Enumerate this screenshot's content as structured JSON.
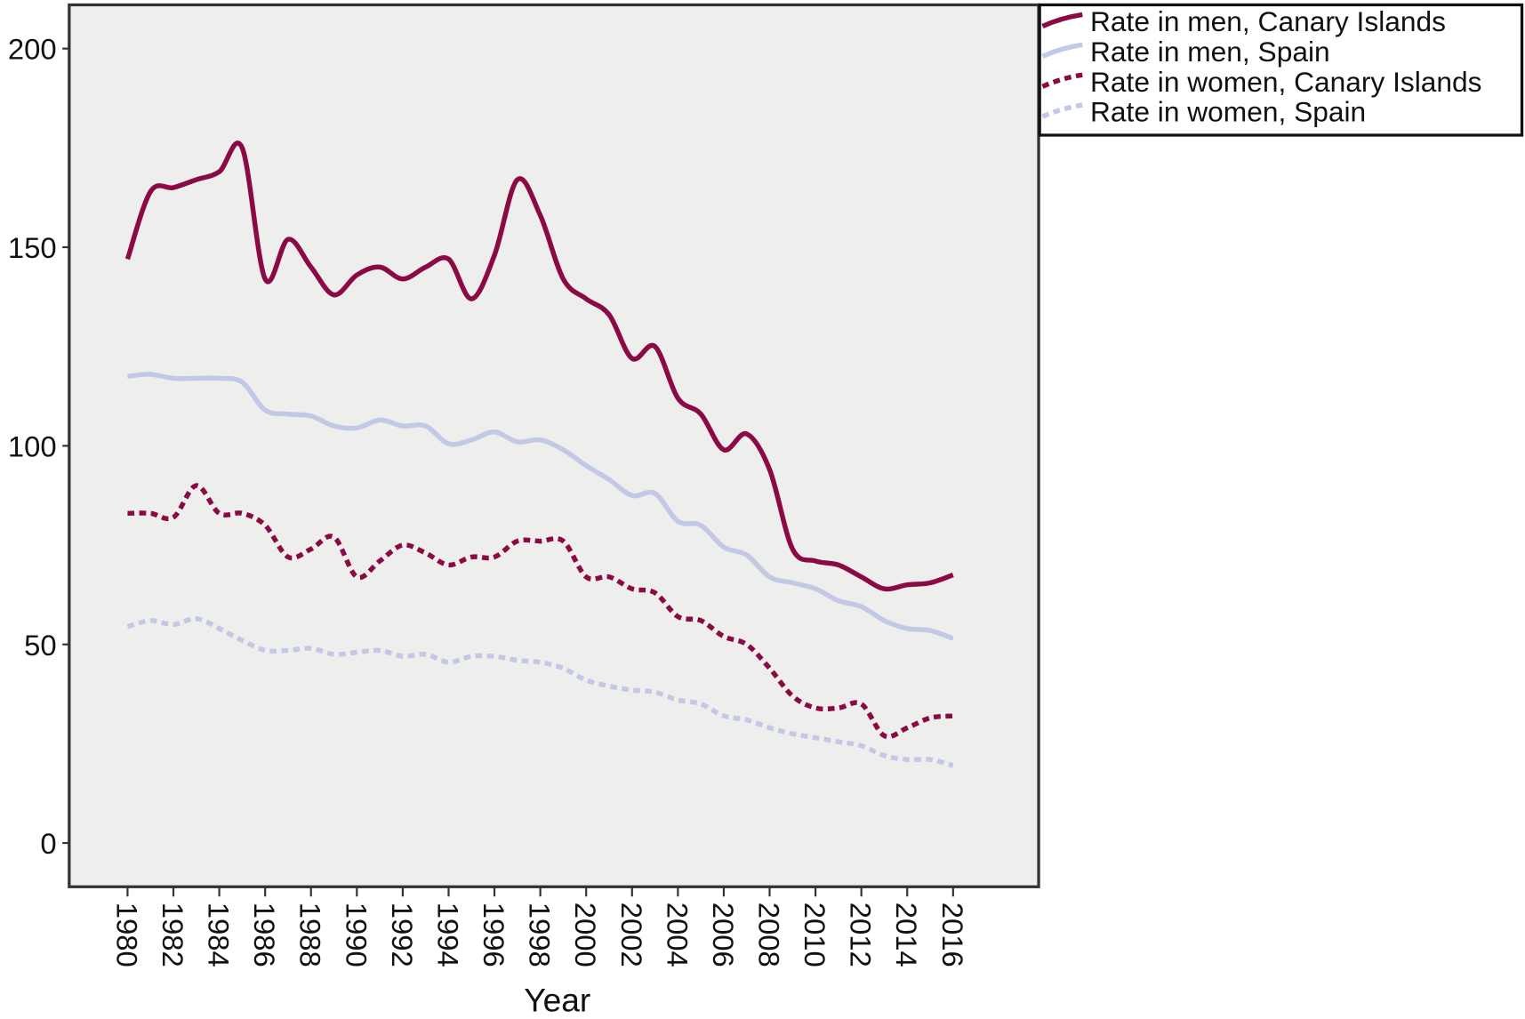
{
  "chart_data": {
    "type": "line",
    "title": "",
    "xlabel": "Year",
    "ylabel": "",
    "xlim": [
      1980,
      2016
    ],
    "ylim": [
      -10,
      212
    ],
    "grid": false,
    "legend_position": "top-right, outside plot",
    "plot_background": "#eeeeec",
    "y_ticks": [
      "0",
      "50",
      "100",
      "150",
      "200"
    ],
    "x_ticks": [
      "1980",
      "1982",
      "1984",
      "1986",
      "1988",
      "1990",
      "1992",
      "1994",
      "1996",
      "1998",
      "2000",
      "2002",
      "2004",
      "2006",
      "2008",
      "2010",
      "2012",
      "2014",
      "2016"
    ],
    "x": [
      1980,
      1981,
      1982,
      1983,
      1984,
      1985,
      1986,
      1987,
      1988,
      1989,
      1990,
      1991,
      1992,
      1993,
      1994,
      1995,
      1996,
      1997,
      1998,
      1999,
      2000,
      2001,
      2002,
      2003,
      2004,
      2005,
      2006,
      2007,
      2008,
      2009,
      2010,
      2011,
      2012,
      2013,
      2014,
      2015,
      2016
    ],
    "series": [
      {
        "name": "Rate in men, Canary Islands",
        "color": "#8b0a46",
        "style": "solid",
        "values": [
          147,
          164,
          165,
          167,
          169,
          175,
          142,
          152,
          145,
          138,
          143,
          145,
          142,
          145,
          147,
          137,
          148,
          167,
          158,
          142,
          137,
          133,
          122,
          125,
          112,
          108,
          99,
          103,
          94,
          74,
          71,
          70,
          67,
          64,
          65,
          65.5,
          67.5
        ]
      },
      {
        "name": "Rate in men, Spain",
        "color": "#c3c8e6",
        "style": "solid",
        "values": [
          117.5,
          118,
          117,
          117,
          117,
          116,
          109,
          108,
          107.5,
          105,
          104.5,
          106.5,
          105,
          105,
          100.5,
          101.5,
          103.5,
          101,
          101.5,
          99,
          95,
          91.5,
          87.5,
          88,
          81,
          80,
          74.5,
          72.5,
          67,
          65.5,
          64,
          61,
          59.5,
          56,
          54,
          53.5,
          51.5
        ]
      },
      {
        "name": "Rate in women, Canary Islands",
        "color": "#8b0a46",
        "style": "dotted",
        "values": [
          83,
          83,
          82,
          90,
          83,
          83,
          80,
          72,
          74,
          77,
          67,
          71,
          75,
          73,
          70,
          72,
          72,
          76,
          76,
          76,
          67,
          67,
          64,
          63,
          57,
          56,
          52,
          50,
          44,
          37,
          34,
          34,
          35,
          27,
          29,
          31.5,
          32
        ]
      },
      {
        "name": "Rate in women, Spain",
        "color": "#c3c8e6",
        "style": "dotted",
        "values": [
          54.5,
          56,
          55,
          56.5,
          54,
          51,
          48.5,
          48.5,
          49,
          47.5,
          48,
          48.5,
          47,
          47.5,
          45.5,
          47,
          47,
          46,
          45.5,
          44,
          41,
          39.5,
          38.5,
          38,
          36,
          35,
          32,
          31,
          29,
          27.5,
          26.5,
          25.5,
          24.5,
          22,
          21,
          21,
          19.5
        ]
      }
    ]
  }
}
